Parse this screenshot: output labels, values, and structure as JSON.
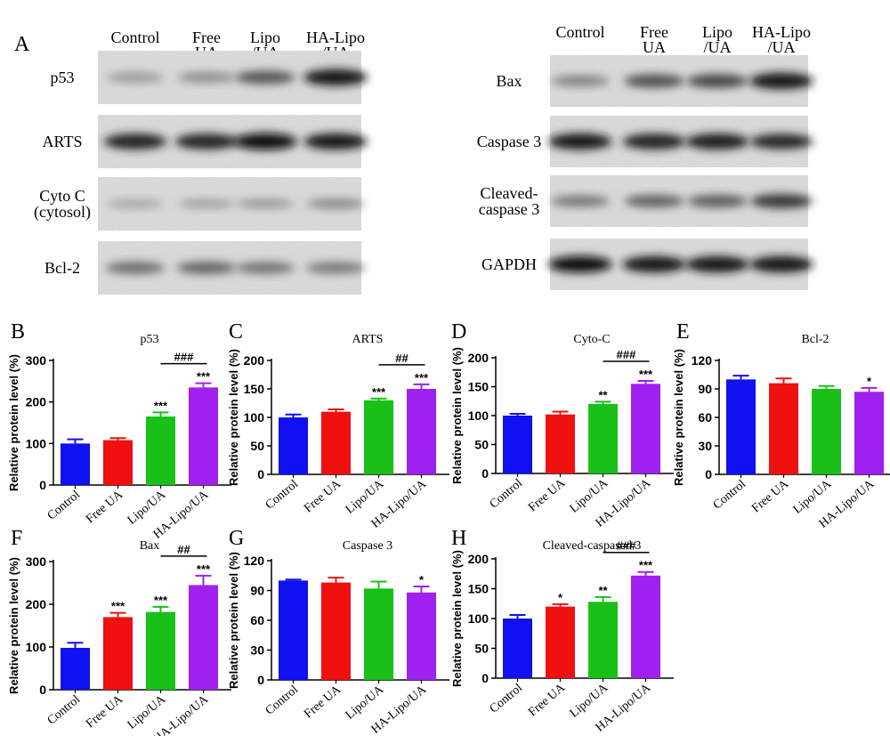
{
  "panel_a": {
    "letter": "A",
    "left": {
      "lanes": [
        [
          "Control"
        ],
        [
          "Free",
          "UA"
        ],
        [
          "Lipo",
          "/UA"
        ],
        [
          "HA-Lipo",
          "/UA"
        ]
      ],
      "rows": [
        {
          "label": [
            "p53"
          ],
          "intensity": [
            0.35,
            0.4,
            0.65,
            0.95
          ]
        },
        {
          "label": [
            "ARTS"
          ],
          "intensity": [
            0.9,
            0.88,
            0.97,
            0.93
          ]
        },
        {
          "label": [
            "Cyto C",
            "(cytosol)"
          ],
          "intensity": [
            0.28,
            0.3,
            0.33,
            0.4
          ]
        },
        {
          "label": [
            "Bcl-2"
          ],
          "intensity": [
            0.55,
            0.58,
            0.52,
            0.5
          ]
        }
      ]
    },
    "right": {
      "lanes": [
        [
          "Control"
        ],
        [
          "Free",
          "UA"
        ],
        [
          "Lipo",
          "/UA"
        ],
        [
          "HA-Lipo",
          "/UA"
        ]
      ],
      "rows": [
        {
          "label": [
            "Bax"
          ],
          "intensity": [
            0.45,
            0.68,
            0.72,
            0.96
          ]
        },
        {
          "label": [
            "Caspase 3"
          ],
          "intensity": [
            0.93,
            0.9,
            0.92,
            0.86
          ]
        },
        {
          "label": [
            "Cleaved-",
            "caspase 3"
          ],
          "intensity": [
            0.5,
            0.6,
            0.62,
            0.78
          ]
        },
        {
          "label": [
            "GAPDH"
          ],
          "intensity": [
            0.97,
            0.96,
            0.96,
            0.95
          ]
        }
      ]
    }
  },
  "colors": {
    "Control": "#1010f0",
    "Free UA": "#f01010",
    "Lipo/UA": "#18c018",
    "HA-Lipo/UA": "#a020f0"
  },
  "chart_data": [
    {
      "letter": "B",
      "type": "bar",
      "title": "p53",
      "ylabel": "Relative protein level (%)",
      "categories": [
        "Control",
        "Free UA",
        "Lipo/UA",
        "HA-Lipo/UA"
      ],
      "values": [
        100,
        108,
        165,
        235
      ],
      "errors": [
        10,
        5,
        10,
        10
      ],
      "ylim": [
        0,
        300
      ],
      "yticks": [
        0,
        100,
        200,
        300
      ],
      "sig": [
        "",
        "",
        "***",
        "***"
      ],
      "bracket": {
        "from": 2,
        "to": 3,
        "label": "###"
      }
    },
    {
      "letter": "C",
      "type": "bar",
      "title": "ARTS",
      "ylabel": "Relative protein level (%)",
      "categories": [
        "Control",
        "Free UA",
        "Lipo/UA",
        "HA-Lipo/UA"
      ],
      "values": [
        100,
        110,
        130,
        150
      ],
      "errors": [
        5,
        4,
        3,
        8
      ],
      "ylim": [
        0,
        200
      ],
      "yticks": [
        0,
        50,
        100,
        150,
        200
      ],
      "sig": [
        "",
        "",
        "***",
        "***"
      ],
      "bracket": {
        "from": 2,
        "to": 3,
        "label": "##"
      }
    },
    {
      "letter": "D",
      "type": "bar",
      "title": "Cyto-C",
      "ylabel": "Relative protein level (%)",
      "categories": [
        "Control",
        "Free UA",
        "Lipo/UA",
        "HA-Lipo/UA"
      ],
      "values": [
        100,
        102,
        120,
        155
      ],
      "errors": [
        3,
        5,
        4,
        5
      ],
      "ylim": [
        0,
        200
      ],
      "yticks": [
        0,
        50,
        100,
        150,
        200
      ],
      "sig": [
        "",
        "",
        "**",
        "***"
      ],
      "bracket": {
        "from": 2,
        "to": 3,
        "label": "###"
      }
    },
    {
      "letter": "E",
      "type": "bar",
      "title": "Bcl-2",
      "ylabel": "Relative protein level (%)",
      "categories": [
        "Control",
        "Free UA",
        "Lipo/UA",
        "HA-Lipo/UA"
      ],
      "values": [
        100,
        96,
        90,
        87
      ],
      "errors": [
        4,
        5,
        3,
        4
      ],
      "ylim": [
        0,
        120
      ],
      "yticks": [
        0,
        30,
        60,
        90,
        120
      ],
      "sig": [
        "",
        "",
        "",
        "*"
      ],
      "bracket": null
    },
    {
      "letter": "F",
      "type": "bar",
      "title": "Bax",
      "ylabel": "Relative protein level (%)",
      "categories": [
        "Control",
        "Free UA",
        "Lipo/UA",
        "HA-Lipo/UA"
      ],
      "values": [
        98,
        170,
        182,
        245
      ],
      "errors": [
        12,
        10,
        12,
        22
      ],
      "ylim": [
        0,
        300
      ],
      "yticks": [
        0,
        100,
        200,
        300
      ],
      "sig": [
        "",
        "***",
        "***",
        "***"
      ],
      "bracket": {
        "from": 2,
        "to": 3,
        "label": "##"
      }
    },
    {
      "letter": "G",
      "type": "bar",
      "title": "Caspase 3",
      "ylabel": "Relative protein level (%)",
      "categories": [
        "Control",
        "Free UA",
        "Lipo/UA",
        "HA-Lipo/UA"
      ],
      "values": [
        100,
        98,
        92,
        88
      ],
      "errors": [
        1,
        5,
        7,
        6
      ],
      "ylim": [
        0,
        120
      ],
      "yticks": [
        0,
        30,
        60,
        90,
        120
      ],
      "sig": [
        "",
        "",
        "",
        "*"
      ],
      "bracket": null
    },
    {
      "letter": "H",
      "type": "bar",
      "title": "Cleaved-caspased 3",
      "ylabel": "Relative protein level (%)",
      "categories": [
        "Control",
        "Free UA",
        "Lipo/UA",
        "HA-Lipo/UA"
      ],
      "values": [
        100,
        120,
        128,
        172
      ],
      "errors": [
        6,
        4,
        8,
        6
      ],
      "ylim": [
        0,
        200
      ],
      "yticks": [
        0,
        50,
        100,
        150,
        200
      ],
      "sig": [
        "",
        "*",
        "**",
        "***"
      ],
      "bracket": {
        "from": 2,
        "to": 3,
        "label": "###"
      }
    }
  ]
}
